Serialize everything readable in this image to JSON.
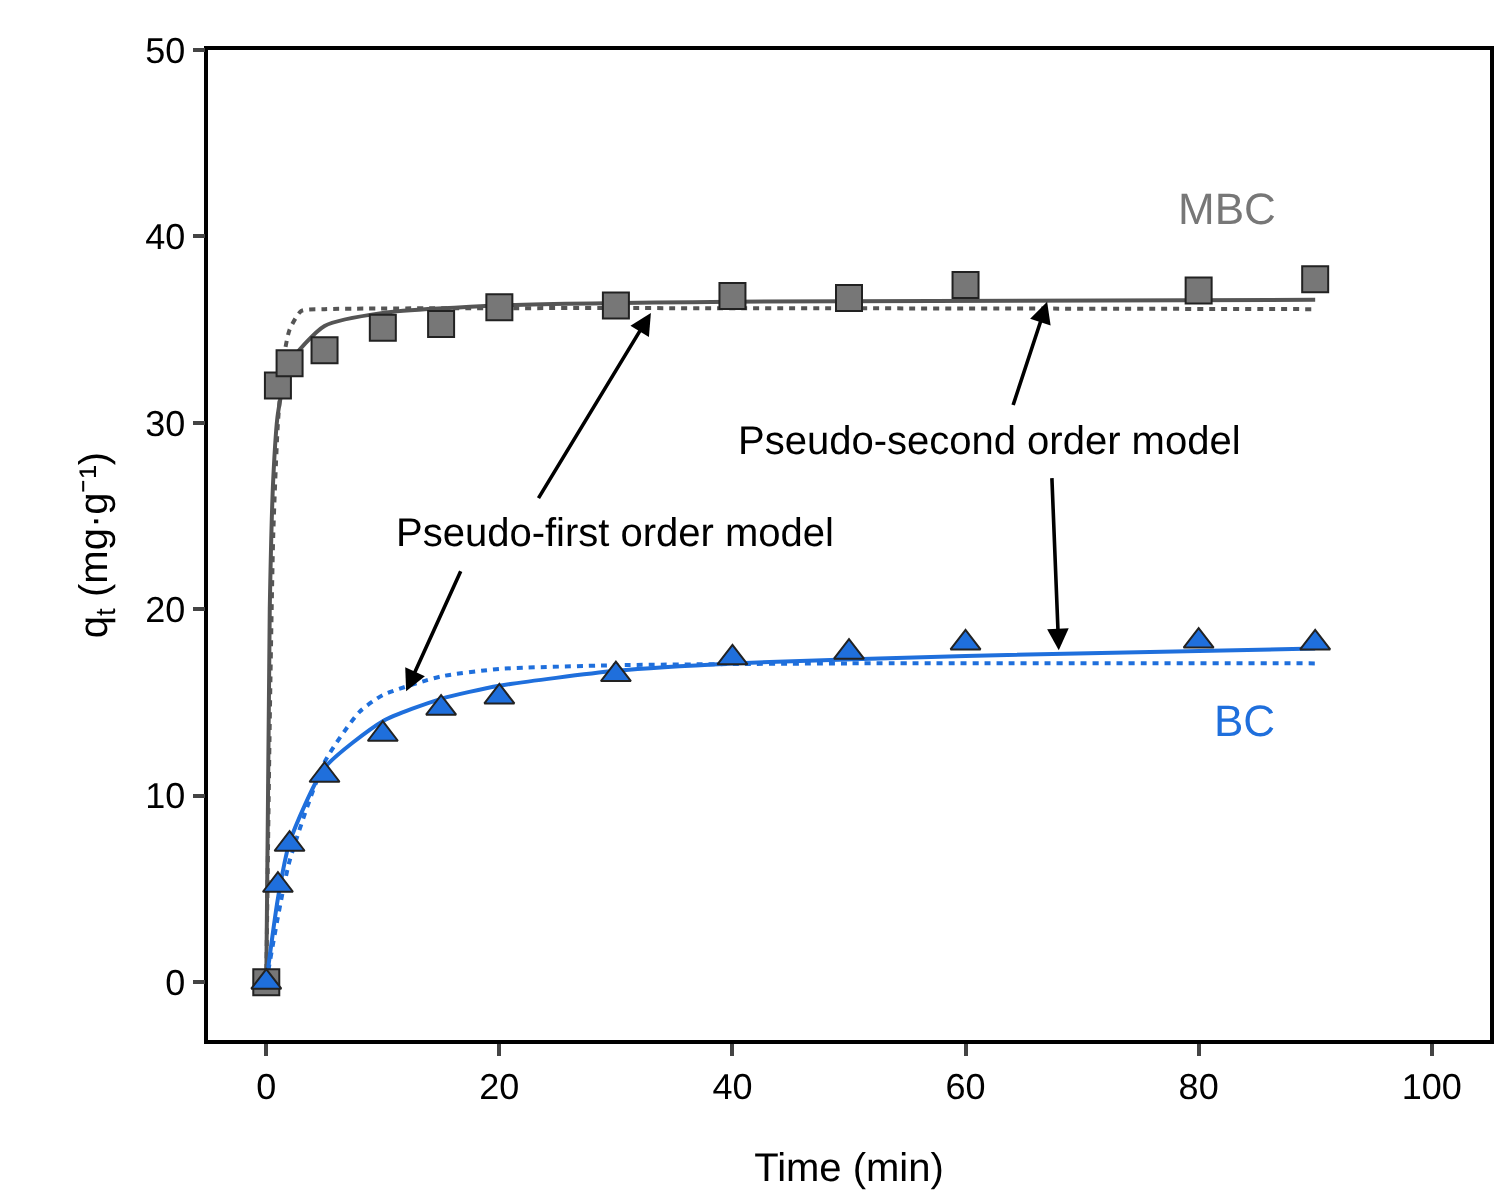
{
  "chart_data": {
    "type": "scatter",
    "xlabel": "Time (min)",
    "ylabel": "q$_{t}$ (mg·g⁻¹)",
    "xlim": [
      -5,
      105
    ],
    "ylim": [
      -3.1,
      50
    ],
    "xticks": [
      0,
      20,
      40,
      60,
      80,
      100
    ],
    "yticks": [
      0,
      10,
      20,
      30,
      40,
      50
    ],
    "grid": false,
    "annotations": [
      {
        "text": "Pseudo-second order model",
        "x": 67,
        "y": 36.5
      },
      {
        "text": "Pseudo-first order model",
        "x": 33,
        "y": 35.9
      }
    ],
    "series": [
      {
        "name": "MBC",
        "marker": "square",
        "color": "#777777",
        "x": [
          0,
          1,
          2,
          5,
          10,
          15,
          20,
          30,
          40,
          50,
          60,
          80,
          90
        ],
        "values": [
          0,
          32.0,
          33.2,
          33.9,
          35.1,
          35.3,
          36.2,
          36.3,
          36.8,
          36.7,
          37.4,
          37.1,
          37.7
        ]
      },
      {
        "name": "BC",
        "marker": "triangle",
        "color": "#1f6fdc",
        "x": [
          0,
          1,
          2,
          5,
          10,
          15,
          20,
          30,
          40,
          50,
          60,
          80,
          90
        ],
        "values": [
          0,
          5.2,
          7.4,
          11.1,
          13.3,
          14.7,
          15.3,
          16.5,
          17.4,
          17.7,
          18.2,
          18.3,
          18.2
        ]
      },
      {
        "type": "line",
        "line_style": "solid",
        "color": "#555555",
        "x": [
          0,
          0.3,
          0.6,
          1,
          2,
          5,
          10,
          20,
          40,
          90
        ],
        "values": [
          0,
          20,
          27,
          30.5,
          33.2,
          35.2,
          35.9,
          36.3,
          36.5,
          36.6
        ]
      },
      {
        "type": "line",
        "line_style": "dotted",
        "color": "#555555",
        "x": [
          0,
          0.3,
          0.6,
          1,
          1.5,
          2,
          3,
          5,
          90
        ],
        "values": [
          0,
          14,
          24,
          30,
          33.5,
          35,
          36,
          36.1,
          36.1
        ]
      },
      {
        "type": "line",
        "line_style": "solid",
        "color": "#1f6fdc",
        "x": [
          0,
          1,
          2,
          5,
          10,
          15,
          20,
          30,
          40,
          60,
          90
        ],
        "values": [
          0,
          4.5,
          7.5,
          11.5,
          14.0,
          15.2,
          15.9,
          16.7,
          17.1,
          17.5,
          17.9
        ]
      },
      {
        "type": "line",
        "line_style": "dotted",
        "color": "#1f6fdc",
        "x": [
          0,
          1,
          2,
          5,
          8,
          10,
          15,
          20,
          30,
          50,
          90
        ],
        "values": [
          0,
          3.5,
          6.5,
          11.8,
          14.5,
          15.4,
          16.4,
          16.8,
          17.0,
          17.1,
          17.1
        ]
      }
    ]
  }
}
